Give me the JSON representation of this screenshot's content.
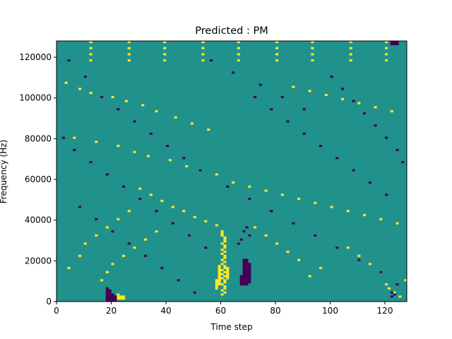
{
  "chart_data": {
    "type": "heatmap",
    "title": "Predicted : PM",
    "xlabel": "Time step",
    "ylabel": "Frequency (Hz)",
    "xlim": [
      0,
      128
    ],
    "ylim": [
      0,
      128000
    ],
    "n_time_bins": 128,
    "n_freq_bins": 128,
    "x_ticks": [
      0,
      20,
      40,
      60,
      80,
      100,
      120
    ],
    "y_ticks": [
      0,
      20000,
      40000,
      60000,
      80000,
      100000,
      120000
    ],
    "x_tick_labels": [
      "0",
      "20",
      "40",
      "60",
      "80",
      "100",
      "120"
    ],
    "y_tick_labels": [
      "0",
      "20000",
      "40000",
      "60000",
      "80000",
      "100000",
      "120000"
    ],
    "grid": false,
    "colors": {
      "background": "#21918c",
      "high": "#fde725",
      "low": "#440154"
    },
    "high_cells": [
      [
        12,
        127
      ],
      [
        26,
        127
      ],
      [
        39,
        127
      ],
      [
        53,
        127
      ],
      [
        66,
        127
      ],
      [
        80,
        127
      ],
      [
        93,
        127
      ],
      [
        107,
        127
      ],
      [
        120,
        127
      ],
      [
        12,
        124
      ],
      [
        26,
        124
      ],
      [
        39,
        124
      ],
      [
        53,
        124
      ],
      [
        66,
        124
      ],
      [
        80,
        124
      ],
      [
        93,
        124
      ],
      [
        107,
        124
      ],
      [
        120,
        124
      ],
      [
        12,
        121
      ],
      [
        26,
        121
      ],
      [
        39,
        121
      ],
      [
        53,
        121
      ],
      [
        66,
        121
      ],
      [
        80,
        121
      ],
      [
        93,
        121
      ],
      [
        107,
        121
      ],
      [
        120,
        121
      ],
      [
        12,
        118
      ],
      [
        26,
        118
      ],
      [
        39,
        118
      ],
      [
        53,
        118
      ],
      [
        66,
        118
      ],
      [
        80,
        118
      ],
      [
        93,
        118
      ],
      [
        107,
        118
      ],
      [
        120,
        118
      ],
      [
        3,
        107
      ],
      [
        8,
        104
      ],
      [
        12,
        102
      ],
      [
        20,
        100
      ],
      [
        25,
        98
      ],
      [
        31,
        96
      ],
      [
        36,
        93
      ],
      [
        43,
        90
      ],
      [
        49,
        87
      ],
      [
        55,
        84
      ],
      [
        6,
        80
      ],
      [
        14,
        78
      ],
      [
        22,
        76
      ],
      [
        28,
        73
      ],
      [
        33,
        71
      ],
      [
        41,
        69
      ],
      [
        47,
        66
      ],
      [
        52,
        64
      ],
      [
        58,
        62
      ],
      [
        64,
        58
      ],
      [
        70,
        56
      ],
      [
        76,
        54
      ],
      [
        82,
        52
      ],
      [
        88,
        50
      ],
      [
        94,
        48
      ],
      [
        100,
        46
      ],
      [
        106,
        44
      ],
      [
        112,
        42
      ],
      [
        118,
        40
      ],
      [
        124,
        38
      ],
      [
        86,
        105
      ],
      [
        92,
        103
      ],
      [
        98,
        101
      ],
      [
        104,
        99
      ],
      [
        110,
        97
      ],
      [
        116,
        95
      ],
      [
        122,
        93
      ],
      [
        30,
        55
      ],
      [
        34,
        52
      ],
      [
        38,
        49
      ],
      [
        42,
        46
      ],
      [
        46,
        44
      ],
      [
        50,
        41
      ],
      [
        54,
        39
      ],
      [
        58,
        37
      ],
      [
        60,
        34
      ],
      [
        60,
        33
      ],
      [
        60,
        32
      ],
      [
        61,
        31
      ],
      [
        61,
        30
      ],
      [
        61,
        29
      ],
      [
        60,
        28
      ],
      [
        61,
        27
      ],
      [
        61,
        26
      ],
      [
        60,
        25
      ],
      [
        61,
        24
      ],
      [
        60,
        23
      ],
      [
        61,
        22
      ],
      [
        61,
        21
      ],
      [
        60,
        20
      ],
      [
        61,
        19
      ],
      [
        60,
        18
      ],
      [
        61,
        17
      ],
      [
        61,
        16
      ],
      [
        60,
        15
      ],
      [
        61,
        14
      ],
      [
        60,
        13
      ],
      [
        61,
        12
      ],
      [
        60,
        11
      ],
      [
        61,
        10
      ],
      [
        61,
        9
      ],
      [
        60,
        8
      ],
      [
        61,
        7
      ],
      [
        61,
        6
      ],
      [
        60,
        5
      ],
      [
        61,
        4
      ],
      [
        60,
        3
      ],
      [
        59,
        17
      ],
      [
        59,
        16
      ],
      [
        59,
        15
      ],
      [
        59,
        14
      ],
      [
        59,
        13
      ],
      [
        59,
        12
      ],
      [
        59,
        11
      ],
      [
        59,
        10
      ],
      [
        59,
        9
      ],
      [
        59,
        8
      ],
      [
        58,
        10
      ],
      [
        58,
        9
      ],
      [
        58,
        8
      ],
      [
        58,
        7
      ],
      [
        58,
        6
      ],
      [
        62,
        16
      ],
      [
        62,
        15
      ],
      [
        62,
        14
      ],
      [
        62,
        13
      ],
      [
        62,
        12
      ],
      [
        62,
        11
      ],
      [
        22,
        3
      ],
      [
        22,
        2
      ],
      [
        22,
        1
      ],
      [
        23,
        2
      ],
      [
        23,
        1
      ],
      [
        24,
        2
      ],
      [
        24,
        1
      ],
      [
        120,
        8
      ],
      [
        121,
        6
      ],
      [
        123,
        4
      ],
      [
        125,
        2
      ],
      [
        127,
        10
      ],
      [
        118,
        14
      ],
      [
        114,
        18
      ],
      [
        110,
        22
      ],
      [
        106,
        26
      ],
      [
        96,
        16
      ],
      [
        92,
        12
      ],
      [
        88,
        20
      ],
      [
        84,
        24
      ],
      [
        80,
        28
      ],
      [
        76,
        32
      ],
      [
        72,
        36
      ],
      [
        16,
        10
      ],
      [
        18,
        14
      ],
      [
        20,
        18
      ],
      [
        24,
        22
      ],
      [
        28,
        26
      ],
      [
        32,
        30
      ],
      [
        36,
        34
      ],
      [
        4,
        16
      ],
      [
        8,
        22
      ],
      [
        10,
        28
      ],
      [
        14,
        32
      ],
      [
        18,
        36
      ],
      [
        22,
        40
      ],
      [
        26,
        44
      ]
    ],
    "low_cells": [
      [
        18,
        6
      ],
      [
        18,
        5
      ],
      [
        18,
        4
      ],
      [
        18,
        3
      ],
      [
        18,
        2
      ],
      [
        18,
        1
      ],
      [
        18,
        0
      ],
      [
        19,
        5
      ],
      [
        19,
        4
      ],
      [
        19,
        3
      ],
      [
        19,
        2
      ],
      [
        19,
        1
      ],
      [
        19,
        0
      ],
      [
        20,
        3
      ],
      [
        20,
        2
      ],
      [
        20,
        1
      ],
      [
        20,
        0
      ],
      [
        21,
        2
      ],
      [
        21,
        1
      ],
      [
        21,
        0
      ],
      [
        68,
        20
      ],
      [
        68,
        19
      ],
      [
        68,
        18
      ],
      [
        68,
        17
      ],
      [
        68,
        16
      ],
      [
        68,
        15
      ],
      [
        68,
        14
      ],
      [
        68,
        13
      ],
      [
        68,
        12
      ],
      [
        68,
        11
      ],
      [
        68,
        10
      ],
      [
        68,
        9
      ],
      [
        68,
        8
      ],
      [
        69,
        20
      ],
      [
        69,
        19
      ],
      [
        69,
        18
      ],
      [
        69,
        17
      ],
      [
        69,
        16
      ],
      [
        69,
        15
      ],
      [
        69,
        14
      ],
      [
        69,
        13
      ],
      [
        69,
        12
      ],
      [
        69,
        11
      ],
      [
        69,
        10
      ],
      [
        69,
        9
      ],
      [
        69,
        8
      ],
      [
        70,
        18
      ],
      [
        70,
        17
      ],
      [
        70,
        16
      ],
      [
        70,
        15
      ],
      [
        70,
        14
      ],
      [
        70,
        13
      ],
      [
        70,
        12
      ],
      [
        70,
        11
      ],
      [
        70,
        10
      ],
      [
        70,
        9
      ],
      [
        67,
        12
      ],
      [
        67,
        11
      ],
      [
        67,
        10
      ],
      [
        67,
        9
      ],
      [
        67,
        8
      ],
      [
        66,
        28
      ],
      [
        67,
        30
      ],
      [
        68,
        34
      ],
      [
        69,
        36
      ],
      [
        70,
        32
      ],
      [
        122,
        127
      ],
      [
        123,
        127
      ],
      [
        124,
        127
      ],
      [
        122,
        126
      ],
      [
        123,
        126
      ],
      [
        124,
        126
      ],
      [
        122,
        4
      ],
      [
        123,
        3
      ],
      [
        122,
        2
      ],
      [
        4,
        118
      ],
      [
        10,
        110
      ],
      [
        16,
        100
      ],
      [
        22,
        94
      ],
      [
        28,
        88
      ],
      [
        34,
        82
      ],
      [
        40,
        76
      ],
      [
        46,
        70
      ],
      [
        52,
        64
      ],
      [
        62,
        56
      ],
      [
        70,
        50
      ],
      [
        78,
        44
      ],
      [
        86,
        38
      ],
      [
        94,
        32
      ],
      [
        102,
        26
      ],
      [
        110,
        20
      ],
      [
        118,
        14
      ],
      [
        124,
        8
      ],
      [
        2,
        80
      ],
      [
        6,
        74
      ],
      [
        12,
        68
      ],
      [
        18,
        62
      ],
      [
        24,
        56
      ],
      [
        30,
        50
      ],
      [
        36,
        44
      ],
      [
        42,
        38
      ],
      [
        48,
        32
      ],
      [
        54,
        26
      ],
      [
        100,
        110
      ],
      [
        104,
        104
      ],
      [
        108,
        98
      ],
      [
        112,
        92
      ],
      [
        116,
        86
      ],
      [
        120,
        80
      ],
      [
        124,
        74
      ],
      [
        126,
        68
      ],
      [
        8,
        46
      ],
      [
        14,
        40
      ],
      [
        20,
        34
      ],
      [
        26,
        28
      ],
      [
        32,
        22
      ],
      [
        38,
        16
      ],
      [
        44,
        10
      ],
      [
        50,
        4
      ],
      [
        72,
        100
      ],
      [
        78,
        94
      ],
      [
        84,
        88
      ],
      [
        90,
        82
      ],
      [
        96,
        76
      ],
      [
        102,
        70
      ],
      [
        108,
        64
      ],
      [
        114,
        58
      ],
      [
        120,
        52
      ],
      [
        56,
        118
      ],
      [
        64,
        112
      ],
      [
        74,
        106
      ],
      [
        82,
        100
      ],
      [
        90,
        94
      ]
    ]
  }
}
